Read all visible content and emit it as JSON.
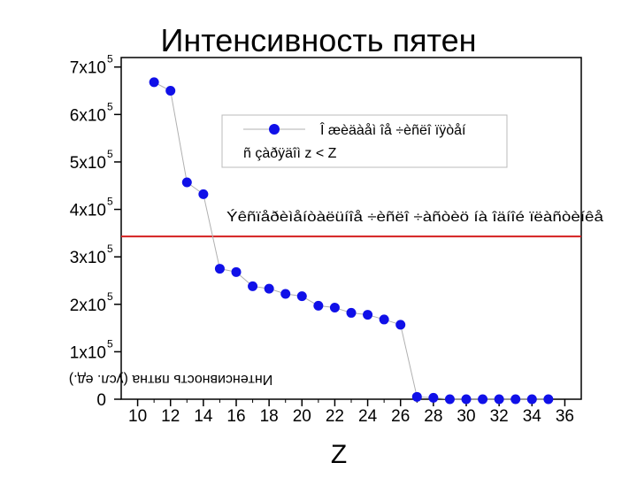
{
  "chart_data": {
    "type": "scatter",
    "title": "Интенсивность пятен",
    "xlabel": "Z",
    "ylabel": "Интенсивность пятна (усл. ед.)",
    "xlim": [
      9,
      37
    ],
    "ylim": [
      0,
      720000
    ],
    "x_ticks": [
      10,
      12,
      14,
      16,
      18,
      20,
      22,
      24,
      26,
      28,
      30,
      32,
      34,
      36
    ],
    "y_ticks": [
      {
        "value": 0,
        "mantissa": "0",
        "exp": ""
      },
      {
        "value": 100000,
        "mantissa": "1x10",
        "exp": "5"
      },
      {
        "value": 200000,
        "mantissa": "2x10",
        "exp": "5"
      },
      {
        "value": 300000,
        "mantissa": "3x10",
        "exp": "5"
      },
      {
        "value": 400000,
        "mantissa": "4x10",
        "exp": "5"
      },
      {
        "value": 500000,
        "mantissa": "5x10",
        "exp": "5"
      },
      {
        "value": 600000,
        "mantissa": "6x10",
        "exp": "5"
      },
      {
        "value": 700000,
        "mantissa": "7x10",
        "exp": "5"
      }
    ],
    "series": [
      {
        "name": "Î æèäàåì îå ÷èñëî ïÿòåí ñ çàðÿäîì z < Z",
        "color": "#1010e8",
        "line_color": "#b0b0b0",
        "x": [
          11,
          12,
          13,
          14,
          15,
          16,
          17,
          18,
          19,
          20,
          21,
          22,
          23,
          24,
          25,
          26,
          27,
          28,
          29,
          30,
          31,
          32,
          33,
          34,
          35
        ],
        "y": [
          668000,
          650000,
          457000,
          432000,
          275000,
          268000,
          238000,
          233000,
          222000,
          217000,
          197000,
          193000,
          182000,
          178000,
          168000,
          157000,
          5000,
          3000,
          0,
          0,
          0,
          0,
          0,
          0,
          0
        ]
      }
    ],
    "threshold": {
      "value": 343000,
      "color": "#d42020",
      "label": "Ýêñïåðèìåíòàëüíîå ÷èñëî ÷àñòèö íà îäíîé ïëàñòèíêå"
    },
    "legend_position": "top-right",
    "grid": false
  }
}
